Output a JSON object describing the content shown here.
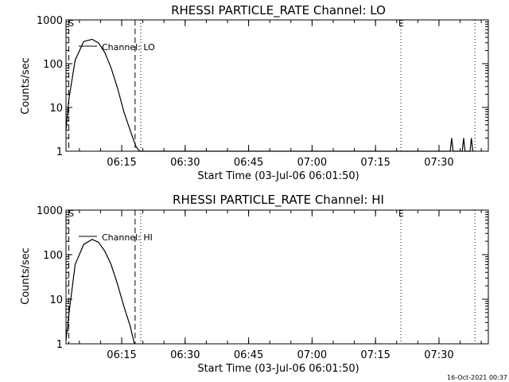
{
  "chart_data": [
    {
      "type": "line",
      "title": "RHESSI PARTICLE_RATE Channel: LO",
      "xlabel": "Start Time (03-Jul-06 06:01:50)",
      "ylabel": "Counts/sec",
      "y_scale": "log",
      "ylim": [
        1,
        1000
      ],
      "xlim": [
        "06:01:50",
        "07:41:40"
      ],
      "x_ticks": [
        "06:15",
        "06:30",
        "06:45",
        "07:00",
        "07:15",
        "07:30"
      ],
      "y_ticks": [
        "1",
        "10",
        "100",
        "1000"
      ],
      "legend": "Channel: LO",
      "markers": [
        "S",
        "E"
      ],
      "vlines": {
        "dashed": [
          "06:02:30",
          "06:18:10"
        ],
        "dotted": [
          "06:19:30",
          "07:21:00",
          "07:38:30"
        ]
      },
      "series": [
        {
          "x": [
            "06:01:50",
            "06:02:30",
            "06:04:00",
            "06:06:00",
            "06:08:00",
            "06:09:30",
            "06:11:00",
            "06:12:30",
            "06:14:00",
            "06:15:30",
            "06:17:00",
            "06:18:20",
            "06:19:10",
            "07:32:40",
            "07:33:00",
            "07:33:20",
            "07:35:30",
            "07:35:50",
            "07:36:10",
            "07:37:20",
            "07:37:40",
            "07:38:00"
          ],
          "values": [
            3,
            15,
            120,
            320,
            360,
            300,
            180,
            80,
            28,
            8,
            3,
            1.3,
            1,
            1,
            2,
            1,
            1,
            2,
            1,
            1,
            2,
            1
          ]
        }
      ]
    },
    {
      "type": "line",
      "title": "RHESSI PARTICLE_RATE Channel: HI",
      "xlabel": "Start Time (03-Jul-06 06:01:50)",
      "ylabel": "Counts/sec",
      "y_scale": "log",
      "ylim": [
        1,
        1000
      ],
      "xlim": [
        "06:01:50",
        "07:41:40"
      ],
      "x_ticks": [
        "06:15",
        "06:30",
        "06:45",
        "07:00",
        "07:15",
        "07:30"
      ],
      "y_ticks": [
        "1",
        "10",
        "100",
        "1000"
      ],
      "legend": "Channel: HI",
      "markers": [
        "S",
        "E"
      ],
      "vlines": {
        "dashed": [
          "06:02:30",
          "06:18:10"
        ],
        "dotted": [
          "06:19:30",
          "07:21:00",
          "07:38:30"
        ]
      },
      "series": [
        {
          "x": [
            "06:01:50",
            "06:02:40",
            "06:04:00",
            "06:06:00",
            "06:08:00",
            "06:09:30",
            "06:11:00",
            "06:12:30",
            "06:14:00",
            "06:15:30",
            "06:17:00",
            "06:18:00"
          ],
          "values": [
            1.2,
            6,
            60,
            170,
            220,
            190,
            120,
            60,
            22,
            7,
            2.5,
            1
          ]
        }
      ]
    }
  ],
  "footer": {
    "timestamp": "16-Oct-2021 00:37"
  }
}
